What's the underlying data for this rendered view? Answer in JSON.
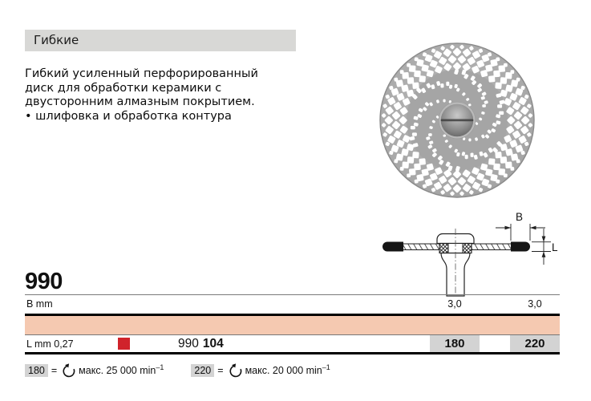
{
  "header": {
    "title": "Гибкие"
  },
  "description": {
    "lines": [
      "Гибкий усиленный перфорированный",
      "диск для обработки керамики с",
      "двусторонним алмазным покрытием.",
      "• шлифовка и обработка контура"
    ]
  },
  "diagram": {
    "dim_b_label": "B",
    "dim_l_label": "L"
  },
  "table": {
    "product_code": "990",
    "b_row": {
      "label": "B mm",
      "values": [
        "3,0",
        "3,0"
      ]
    },
    "l_row": {
      "label": "L mm 0,27",
      "article_normal": "990",
      "article_bold": "104",
      "sizes": [
        "180",
        "220"
      ]
    }
  },
  "legend": {
    "items": [
      {
        "size": "180",
        "eq": "=",
        "text": "макс. 25 000 min",
        "sup": "–1"
      },
      {
        "size": "220",
        "eq": "=",
        "text": "макс. 20 000 min",
        "sup": "–1"
      }
    ]
  },
  "colors": {
    "header_bar": "#d8d8d6",
    "accent_row": "#f5c9b1",
    "red_square": "#d0232b",
    "size_chip": "#d3d3d3"
  }
}
